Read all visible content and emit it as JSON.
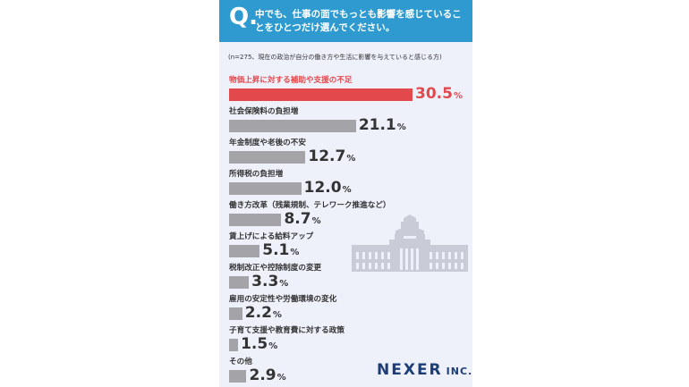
{
  "header": {
    "q_mark": "Q.",
    "question": "中でも、仕事の面でもっとも影響を感じていることをひとつだけ選んでください。"
  },
  "note": "(n=275、現在の政治が自分の働き方や生活に影響を与えていると感じる方)",
  "chart_data": {
    "type": "bar",
    "orientation": "horizontal",
    "categories": [
      "物価上昇に対する補助や支援の不足",
      "社会保険料の負担増",
      "年金制度や老後の不安",
      "所得税の負担増",
      "働き方改革（残業規制、テレワーク推進など）",
      "賃上げによる給料アップ",
      "税制改正や控除制度の変更",
      "雇用の安定性や労働環境の変化",
      "子育て支援や教育費に対する政策",
      "その他"
    ],
    "values": [
      30.5,
      21.1,
      12.7,
      12.0,
      8.7,
      5.1,
      3.3,
      2.2,
      1.5,
      2.9
    ],
    "value_labels": [
      "30.5",
      "21.1",
      "12.7",
      "12.0",
      "8.7",
      "5.1",
      "3.3",
      "2.2",
      "1.5",
      "2.9"
    ],
    "unit": "%",
    "highlight_index": 0,
    "colors": {
      "highlight": "#e2494d",
      "default": "#a3a3a8"
    }
  },
  "logo": {
    "name": "NEXER",
    "suffix": "INC."
  },
  "colors": {
    "header_bg": "#2e9ad0",
    "panel_bg": "#eef0fa",
    "logo": "#1d3d78"
  },
  "illustration": {
    "icon": "parliament-building-icon"
  }
}
